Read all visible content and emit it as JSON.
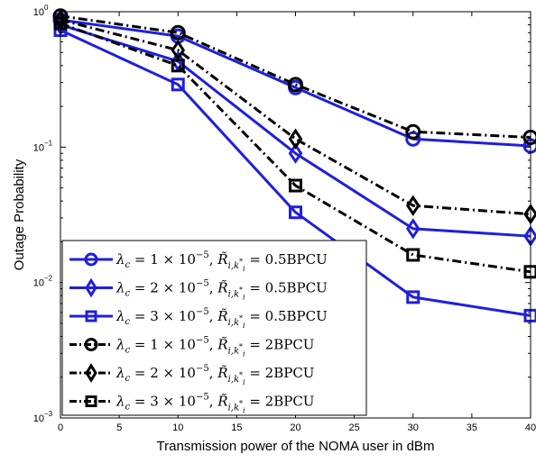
{
  "chart_data": {
    "type": "line",
    "title": "",
    "xlabel": "Transmission power of the NOMA user in dBm",
    "ylabel": "Outage Probability",
    "xlim": [
      0,
      40
    ],
    "ylim": [
      0.001,
      1
    ],
    "yscale": "log",
    "grid": false,
    "legend_position": "bottom-left",
    "x_ticks": [
      0,
      5,
      10,
      15,
      20,
      25,
      30,
      35,
      40
    ],
    "x_tick_labels": [
      "0",
      "5",
      "10",
      "15",
      "20",
      "25",
      "30",
      "35",
      "40"
    ],
    "y_ticks": [
      0.001,
      0.01,
      0.1,
      1
    ],
    "y_tick_labels": [
      {
        "base": "10",
        "exp": "−3"
      },
      {
        "base": "10",
        "exp": "−2"
      },
      {
        "base": "10",
        "exp": "−1"
      },
      {
        "base": "10",
        "exp": "0"
      }
    ],
    "x": [
      0,
      10,
      20,
      30,
      40
    ],
    "series": [
      {
        "name": "λc = 1 × 10^−5, R̃i,k*i = 0.5BPCU",
        "values": [
          0.87,
          0.66,
          0.275,
          0.115,
          0.102
        ],
        "marker": "circle",
        "color": "#1f1fdd",
        "linestyle": "solid"
      },
      {
        "name": "λc = 2 × 10^−5, R̃i,k*i = 0.5BPCU",
        "values": [
          0.8,
          0.43,
          0.09,
          0.025,
          0.022
        ],
        "marker": "diamond",
        "color": "#1f1fdd",
        "linestyle": "solid"
      },
      {
        "name": "λc = 3 × 10^−5, R̃i,k*i = 0.5BPCU",
        "values": [
          0.73,
          0.29,
          0.033,
          0.0078,
          0.0057
        ],
        "marker": "square",
        "color": "#1f1fdd",
        "linestyle": "solid"
      },
      {
        "name": "λc = 1 × 10^−5, R̃i,k*i = 2BPCU",
        "values": [
          0.93,
          0.7,
          0.29,
          0.13,
          0.118
        ],
        "marker": "circle",
        "color": "#000000",
        "linestyle": "dashdot"
      },
      {
        "name": "λc = 2 × 10^−5, R̃i,k*i = 2BPCU",
        "values": [
          0.87,
          0.52,
          0.115,
          0.037,
          0.032
        ],
        "marker": "diamond",
        "color": "#000000",
        "linestyle": "dashdot"
      },
      {
        "name": "λc = 3 × 10^−5, R̃i,k*i = 2BPCU",
        "values": [
          0.82,
          0.4,
          0.052,
          0.016,
          0.012
        ],
        "marker": "square",
        "color": "#000000",
        "linestyle": "dashdot"
      }
    ],
    "legend_entries": [
      {
        "lambda_coef": "1",
        "lambda_exp": "−5",
        "rate": "0.5BPCU"
      },
      {
        "lambda_coef": "2",
        "lambda_exp": "−5",
        "rate": "0.5BPCU"
      },
      {
        "lambda_coef": "3",
        "lambda_exp": "−5",
        "rate": "0.5BPCU"
      },
      {
        "lambda_coef": "1",
        "lambda_exp": "−5",
        "rate": "2BPCU"
      },
      {
        "lambda_coef": "2",
        "lambda_exp": "−5",
        "rate": "2BPCU"
      },
      {
        "lambda_coef": "3",
        "lambda_exp": "−5",
        "rate": "2BPCU"
      }
    ]
  }
}
